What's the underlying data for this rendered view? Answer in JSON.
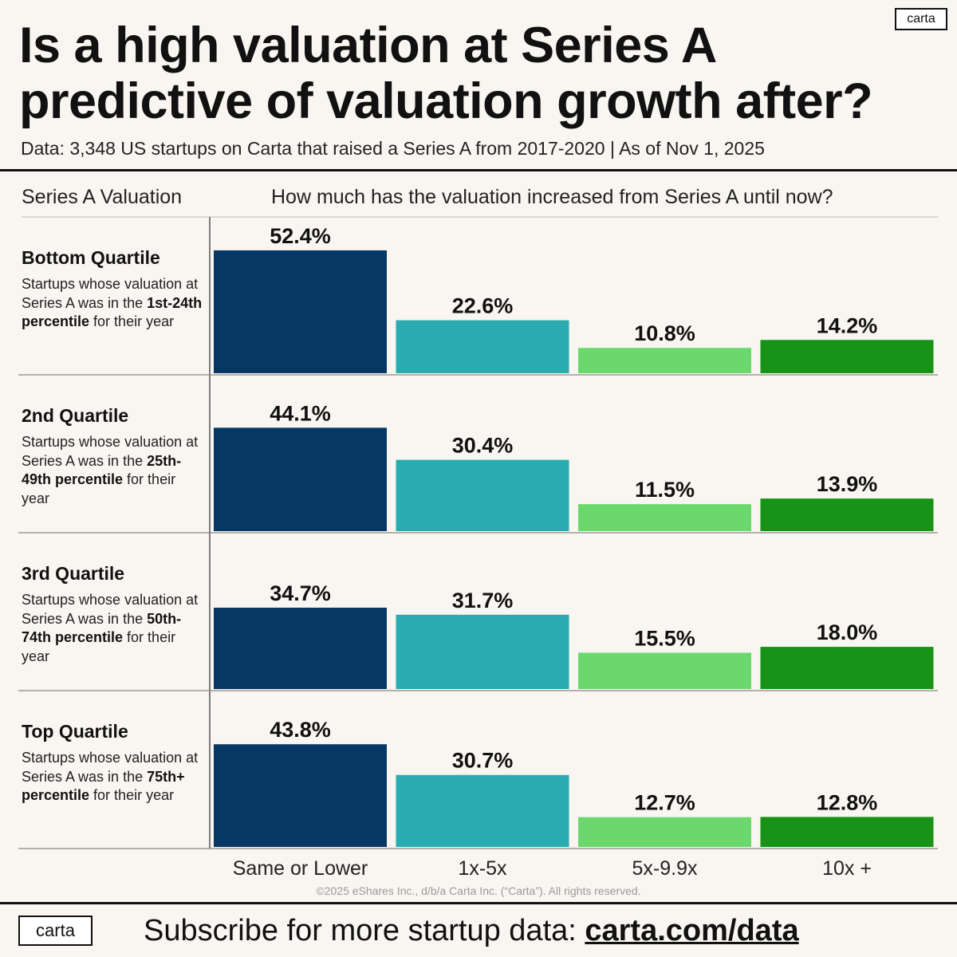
{
  "logo": "carta",
  "title": "Is a high valuation at Series A predictive of valuation growth after?",
  "subtitle": "Data: 3,348 US startups on Carta that raised a Series A from 2017-2020 | As of Nov 1, 2025",
  "column_header_left": "Series A Valuation",
  "column_header_right": "How much has the valuation increased from Series A until now?",
  "quartiles": [
    {
      "name": "Bottom Quartile",
      "desc_pre": "Startups whose valuation at Series A was in the ",
      "desc_bold": "1st-24th percentile",
      "desc_post": " for their year"
    },
    {
      "name": "2nd Quartile",
      "desc_pre": "Startups whose valuation at Series A was in the ",
      "desc_bold": "25th-49th percentile",
      "desc_post": " for their year"
    },
    {
      "name": "3rd Quartile",
      "desc_pre": "Startups whose valuation at Series A was in the ",
      "desc_bold": "50th-74th percentile",
      "desc_post": " for their year"
    },
    {
      "name": "Top Quartile",
      "desc_pre": "Startups whose valuation at Series A was in the ",
      "desc_bold": "75th+ percentile",
      "desc_post": " for their year"
    }
  ],
  "chart_data": {
    "type": "bar",
    "title": "Is a high valuation at Series A predictive of valuation growth after?",
    "xlabel": "How much has the valuation increased from Series A until now?",
    "ylabel": "Series A Valuation",
    "categories": [
      "Same or Lower",
      "1x-5x",
      "5x-9.9x",
      "10x +"
    ],
    "series": [
      {
        "name": "Bottom Quartile",
        "values": [
          52.4,
          22.6,
          10.8,
          14.2
        ]
      },
      {
        "name": "2nd Quartile",
        "values": [
          44.1,
          30.4,
          11.5,
          13.9
        ]
      },
      {
        "name": "3rd Quartile",
        "values": [
          34.7,
          31.7,
          15.5,
          18.0
        ]
      },
      {
        "name": "Top Quartile",
        "values": [
          43.8,
          30.7,
          12.7,
          12.8
        ]
      }
    ],
    "value_suffix": "%",
    "ylim": [
      0,
      100
    ],
    "colors": [
      "#073763",
      "#29abb0",
      "#6bd86d",
      "#179418"
    ]
  },
  "copyright": "©2025 eShares Inc., d/b/a Carta Inc. (“Carta”). All rights reserved.",
  "footer": {
    "cta": "Subscribe for more startup data: ",
    "link": "carta.com/data"
  }
}
